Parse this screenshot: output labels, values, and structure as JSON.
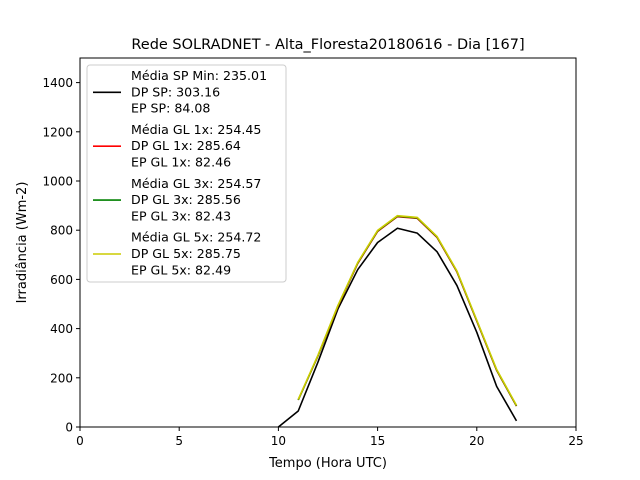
{
  "chart_data": {
    "type": "line",
    "title": "Rede SOLRADNET - Alta_Floresta20180616 - Dia [167]",
    "xlabel": "Tempo (Hora UTC)",
    "ylabel": "Irradiância (Wm-2)",
    "xlim": [
      0,
      25
    ],
    "ylim": [
      0,
      1500
    ],
    "xticks": [
      0,
      5,
      10,
      15,
      20,
      25
    ],
    "yticks": [
      0,
      200,
      400,
      600,
      800,
      1000,
      1200,
      1400
    ],
    "grid": false,
    "legend_position": "upper-left",
    "series": [
      {
        "key": "sp",
        "color": "#000000",
        "legend_lines": [
          "Média SP Min: 235.01",
          "DP SP: 303.16",
          "EP SP: 84.08"
        ],
        "x": [
          10,
          11,
          12,
          13,
          14,
          15,
          16,
          17,
          18,
          19,
          20,
          21,
          22
        ],
        "y": [
          0,
          65,
          265,
          480,
          640,
          750,
          808,
          788,
          712,
          575,
          385,
          165,
          25
        ]
      },
      {
        "key": "gl1",
        "color": "#ff0000",
        "legend_lines": [
          "Média GL 1x: 254.45",
          "DP GL 1x: 285.64",
          "EP GL 1x: 82.46"
        ],
        "x": [
          11,
          12,
          13,
          14,
          15,
          16,
          17,
          18,
          19,
          20,
          21,
          22
        ],
        "y": [
          110,
          290,
          490,
          665,
          795,
          855,
          848,
          770,
          630,
          430,
          230,
          85
        ]
      },
      {
        "key": "gl3",
        "color": "#008000",
        "legend_lines": [
          "Média GL 3x: 254.57",
          "DP GL 3x: 285.56",
          "EP GL 3x: 82.43"
        ],
        "x": [
          11,
          12,
          13,
          14,
          15,
          16,
          17,
          18,
          19,
          20,
          21,
          22
        ],
        "y": [
          110,
          291,
          492,
          667,
          797,
          857,
          850,
          772,
          632,
          432,
          232,
          86
        ]
      },
      {
        "key": "gl5",
        "color": "#cccc00",
        "legend_lines": [
          "Média GL 5x: 254.72",
          "DP GL 5x: 285.75",
          "EP GL 5x: 82.49"
        ],
        "x": [
          11,
          12,
          13,
          14,
          15,
          16,
          17,
          18,
          19,
          20,
          21,
          22
        ],
        "y": [
          112,
          293,
          494,
          669,
          799,
          859,
          852,
          774,
          634,
          434,
          234,
          88
        ]
      }
    ]
  }
}
